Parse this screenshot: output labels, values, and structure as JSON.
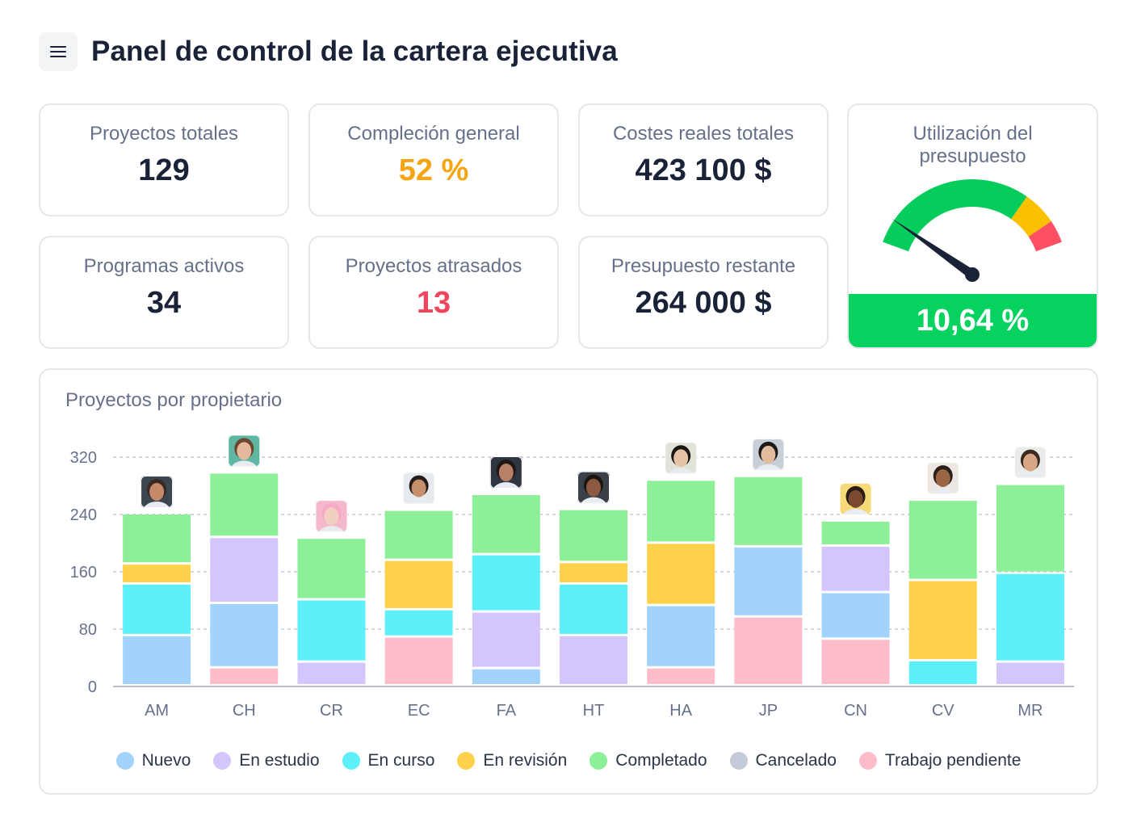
{
  "header": {
    "title": "Panel de control de la cartera ejecutiva"
  },
  "kpis": [
    {
      "label": "Proyectos totales",
      "value": "129",
      "color": "#1a2238"
    },
    {
      "label": "Compleción general",
      "value": "52 %",
      "color": "#f5a512"
    },
    {
      "label": "Costes reales totales",
      "value": "423 100 $",
      "color": "#1a2238"
    },
    {
      "label": "Programas activos",
      "value": "34",
      "color": "#1a2238"
    },
    {
      "label": "Proyectos atrasados",
      "value": "13",
      "color": "#f0455c"
    },
    {
      "label": "Presupuesto restante",
      "value": "264 000 $",
      "color": "#1a2238"
    }
  ],
  "gauge": {
    "title_line1": "Utilización del",
    "title_line2": "presupuesto",
    "value_text": "10,64 %",
    "value_fraction": 0.1064,
    "footer_color": "#05d25f",
    "zones": [
      {
        "to": 0.75,
        "color": "#06cc5c"
      },
      {
        "to": 0.9,
        "color": "#fbc100"
      },
      {
        "to": 1.0,
        "color": "#ff4f63"
      }
    ]
  },
  "chart": {
    "title": "Proyectos por propietario"
  },
  "chart_data": {
    "type": "bar",
    "stacked": true,
    "categories": [
      "AM",
      "CH",
      "CR",
      "EC",
      "FA",
      "HT",
      "HA",
      "JP",
      "CN",
      "CV",
      "MR"
    ],
    "yticks": [
      0,
      80,
      160,
      240,
      320
    ],
    "ylim": [
      0,
      320
    ],
    "grid": true,
    "legend_position": "bottom",
    "series": [
      {
        "name": "Nuevo",
        "color": "#a1d3fd",
        "values": [
          70,
          0,
          0,
          0,
          24,
          0,
          0,
          0,
          0,
          0,
          0
        ]
      },
      {
        "name": "En estudio",
        "color": "#d4c5fc",
        "values": [
          0,
          0,
          33,
          0,
          0,
          70,
          0,
          0,
          0,
          0,
          33
        ]
      },
      {
        "name": "En curso",
        "color": "#5df0fa",
        "values": [
          70,
          0,
          0,
          0,
          0,
          0,
          0,
          0,
          0,
          0,
          0
        ]
      },
      {
        "name": "En revisión",
        "color": "#fdd24a",
        "values": [
          28,
          0,
          0,
          0,
          0,
          0,
          0,
          0,
          0,
          0,
          0
        ]
      },
      {
        "name": "Completado",
        "color": "#8def98",
        "values": [
          70,
          0,
          0,
          0,
          0,
          0,
          0,
          0,
          0,
          0,
          0
        ]
      },
      {
        "name": "Cancelado",
        "color": "#c5cad9",
        "values": [
          0,
          0,
          0,
          0,
          0,
          0,
          0,
          0,
          0,
          0,
          0
        ]
      },
      {
        "name": "Trabajo pendiente",
        "color": "#fdbcca",
        "values": [
          0,
          25,
          0,
          68,
          0,
          0,
          25,
          96,
          65,
          0,
          0
        ]
      }
    ],
    "stacks": [
      [
        [
          "Nuevo",
          70
        ],
        [
          "En curso",
          72
        ],
        [
          "En revisión",
          28
        ],
        [
          "Completado",
          70
        ]
      ],
      [
        [
          "Trabajo pendiente",
          25
        ],
        [
          "Nuevo",
          90
        ],
        [
          "En estudio",
          92
        ],
        [
          "Completado",
          90
        ]
      ],
      [
        [
          "En estudio",
          33
        ],
        [
          "En curso",
          87
        ],
        [
          "Completado",
          86
        ]
      ],
      [
        [
          "Trabajo pendiente",
          68
        ],
        [
          "En curso",
          38
        ],
        [
          "En revisión",
          69
        ],
        [
          "Completado",
          70
        ]
      ],
      [
        [
          "Nuevo",
          24
        ],
        [
          "En estudio",
          79
        ],
        [
          "En curso",
          80
        ],
        [
          "En revisión",
          0
        ],
        [
          "Completado",
          84
        ]
      ],
      [
        [
          "En estudio",
          70
        ],
        [
          "En curso",
          72
        ],
        [
          "En revisión",
          30
        ],
        [
          "Completado",
          74
        ]
      ],
      [
        [
          "Trabajo pendiente",
          25
        ],
        [
          "Nuevo",
          87
        ],
        [
          "En revisión",
          87
        ],
        [
          "Completado",
          88
        ]
      ],
      [
        [
          "Trabajo pendiente",
          96
        ],
        [
          "Nuevo",
          98
        ],
        [
          "Completado",
          98
        ]
      ],
      [
        [
          "Trabajo pendiente",
          65
        ],
        [
          "Nuevo",
          65
        ],
        [
          "En estudio",
          65
        ],
        [
          "Completado",
          35
        ]
      ],
      [
        [
          "En curso",
          35
        ],
        [
          "En revisión",
          112
        ],
        [
          "Completado",
          112
        ]
      ],
      [
        [
          "En estudio",
          33
        ],
        [
          "En curso",
          124
        ],
        [
          "Completado",
          124
        ]
      ]
    ]
  },
  "owners": [
    {
      "id": "AM",
      "skin": "#c48a6a",
      "hair": "#3a2a22",
      "bg": "#3c4650"
    },
    {
      "id": "CH",
      "skin": "#e6b89b",
      "hair": "#6b4630",
      "bg": "#5fb7a2"
    },
    {
      "id": "CR",
      "skin": "#f2cfc0",
      "hair": "#f7a9c8",
      "bg": "#f3b8c9"
    },
    {
      "id": "EC",
      "skin": "#c58f6b",
      "hair": "#241c18",
      "bg": "#e6e9ee"
    },
    {
      "id": "FA",
      "skin": "#b88066",
      "hair": "#1e1714",
      "bg": "#2f3640"
    },
    {
      "id": "HT",
      "skin": "#8c5a40",
      "hair": "#1b1512",
      "bg": "#3b4048"
    },
    {
      "id": "HA",
      "skin": "#e7c3a6",
      "hair": "#1d1714",
      "bg": "#dfe3d8"
    },
    {
      "id": "JP",
      "skin": "#e2bb9c",
      "hair": "#1c1a18",
      "bg": "#c9cfd6"
    },
    {
      "id": "CN",
      "skin": "#7a4a30",
      "hair": "#2a1c14",
      "bg": "#f7d978"
    },
    {
      "id": "CV",
      "skin": "#9a6646",
      "hair": "#2b1f18",
      "bg": "#ece7e2"
    },
    {
      "id": "MR",
      "skin": "#d7a686",
      "hair": "#3a2a20",
      "bg": "#e9ece9"
    }
  ]
}
